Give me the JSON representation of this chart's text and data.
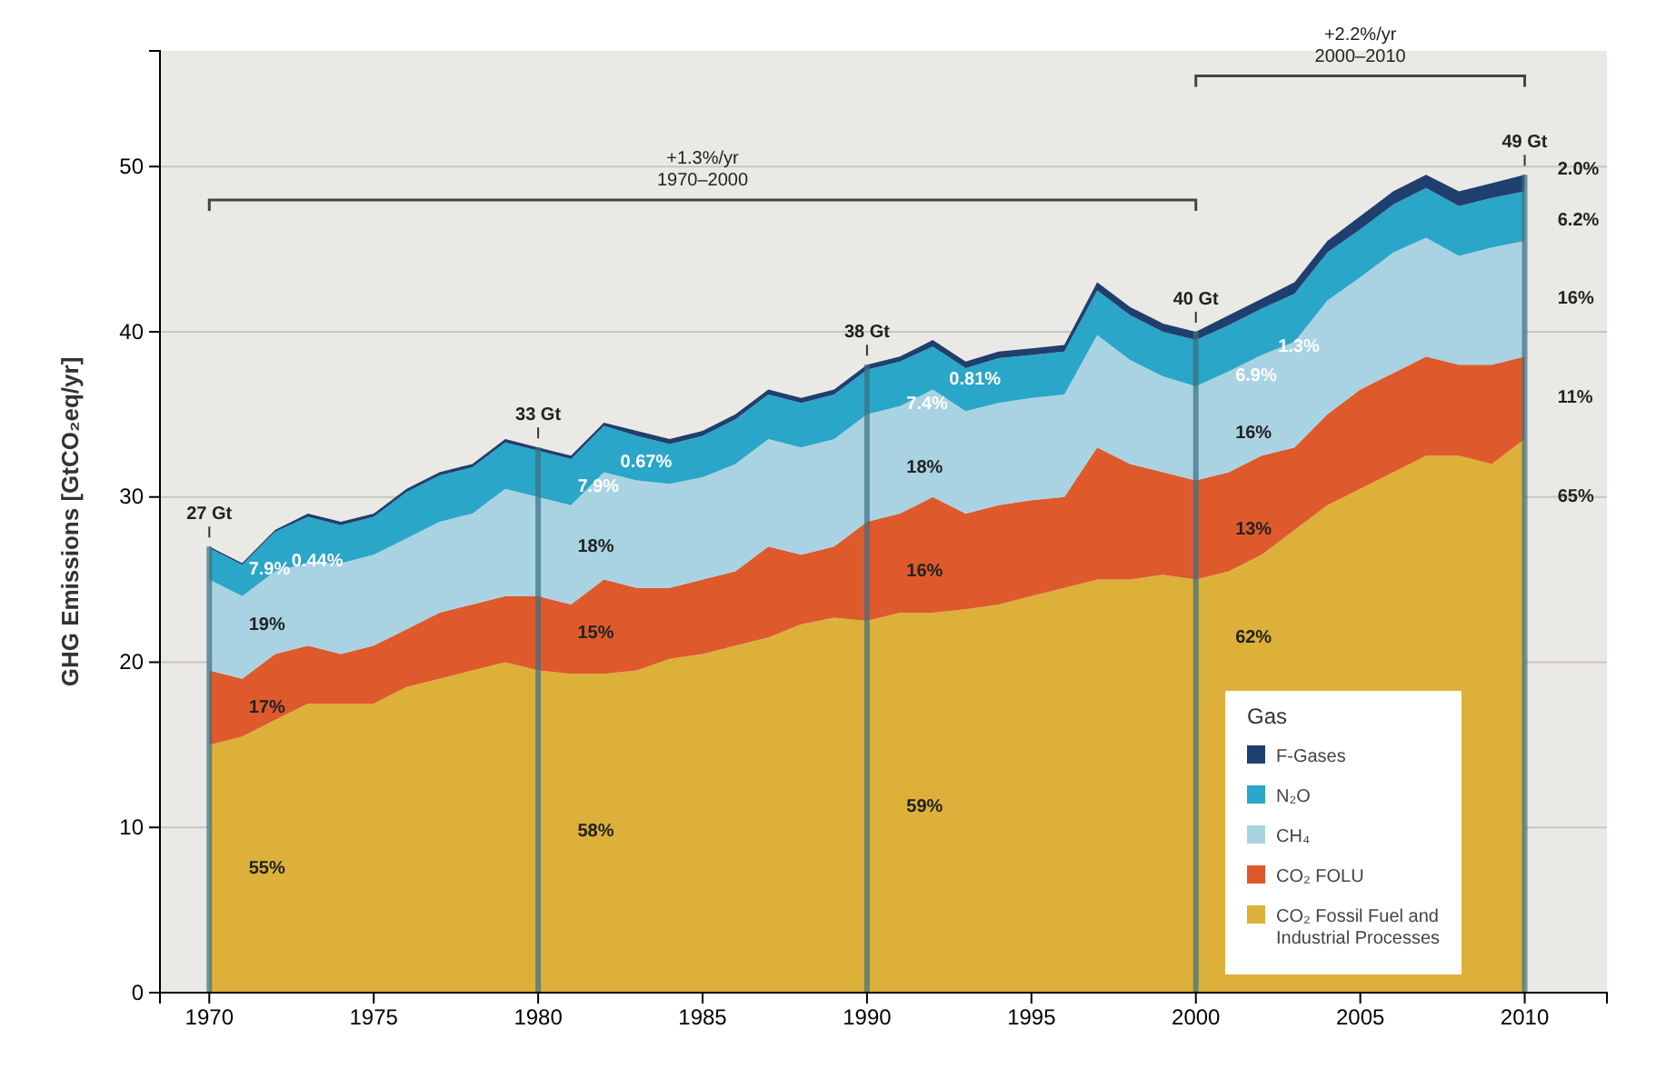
{
  "chart_data": {
    "type": "area",
    "stacked": true,
    "ylabel": "GHG Emissions [GtCO₂eq/yr]",
    "legend_title": "Gas",
    "legend": "bottom right",
    "grid": "y",
    "x": [
      1970,
      1971,
      1972,
      1973,
      1974,
      1975,
      1976,
      1977,
      1978,
      1979,
      1980,
      1981,
      1982,
      1983,
      1984,
      1985,
      1986,
      1987,
      1988,
      1989,
      1990,
      1991,
      1992,
      1993,
      1994,
      1995,
      1996,
      1997,
      1998,
      1999,
      2000,
      2001,
      2002,
      2003,
      2004,
      2005,
      2006,
      2007,
      2008,
      2009,
      2010
    ],
    "xlim": [
      1968.5,
      2012.5
    ],
    "xticks": [
      1970,
      1975,
      1980,
      1985,
      1990,
      1995,
      2000,
      2005,
      2010
    ],
    "ylim": [
      0,
      57
    ],
    "yticks": [
      0,
      10,
      20,
      30,
      40,
      50
    ],
    "series": [
      {
        "name": "CO₂ Fossil Fuel and Industrial Processes",
        "color": "#ddb03a",
        "values": [
          15,
          15.5,
          16.5,
          17.5,
          17.5,
          17.5,
          18.5,
          19,
          19.5,
          20,
          19.5,
          19.3,
          19.3,
          19.5,
          20.2,
          20.5,
          21,
          21.5,
          22.3,
          22.7,
          22.5,
          23,
          23,
          23.2,
          23.5,
          24,
          24.5,
          25,
          25,
          25.3,
          25,
          25.5,
          26.5,
          28,
          29.5,
          30.5,
          31.5,
          32.5,
          32.5,
          32,
          33.5
        ]
      },
      {
        "name": "CO₂ FOLU",
        "color": "#de5a2c",
        "values": [
          4.5,
          3.5,
          4,
          3.5,
          3,
          3.5,
          3.5,
          4,
          4,
          4,
          4.5,
          4.2,
          5.7,
          5,
          4.3,
          4.5,
          4.5,
          5.5,
          4.2,
          4.3,
          6,
          6,
          7,
          5.8,
          6,
          5.8,
          5.5,
          8,
          7,
          6.2,
          6,
          6,
          6,
          5,
          5.5,
          6,
          6,
          6,
          5.5,
          6,
          5
        ]
      },
      {
        "name": "CH₄",
        "color": "#a9d3e3",
        "values": [
          5.5,
          5,
          5,
          5,
          5.5,
          5.5,
          5.5,
          5.5,
          5.5,
          6.5,
          6,
          6,
          6.5,
          6.5,
          6.3,
          6.2,
          6.5,
          6.5,
          6.5,
          6.5,
          6.5,
          6.5,
          6.5,
          6.2,
          6.2,
          6.2,
          6.2,
          6.8,
          6.3,
          5.8,
          5.7,
          6.1,
          6.1,
          6.4,
          6.9,
          6.8,
          7.3,
          7.2,
          6.6,
          7.1,
          7
        ]
      },
      {
        "name": "N₂O",
        "color": "#2aa6c8",
        "values": [
          1.9,
          1.9,
          2.4,
          2.8,
          2.3,
          2.3,
          2.8,
          2.8,
          2.8,
          2.8,
          2.8,
          2.8,
          2.8,
          2.7,
          2.4,
          2.5,
          2.7,
          2.7,
          2.7,
          2.7,
          2.7,
          2.7,
          2.6,
          2.6,
          2.7,
          2.6,
          2.6,
          2.7,
          2.7,
          2.7,
          2.8,
          2.8,
          2.8,
          2.9,
          2.9,
          2.9,
          2.9,
          3,
          3,
          3,
          3
        ]
      },
      {
        "name": "F-Gases",
        "color": "#1f3f6e",
        "values": [
          0.1,
          0.1,
          0.1,
          0.2,
          0.2,
          0.2,
          0.2,
          0.2,
          0.2,
          0.2,
          0.2,
          0.2,
          0.2,
          0.3,
          0.3,
          0.3,
          0.3,
          0.3,
          0.3,
          0.3,
          0.3,
          0.3,
          0.4,
          0.4,
          0.4,
          0.4,
          0.4,
          0.5,
          0.5,
          0.5,
          0.5,
          0.6,
          0.6,
          0.7,
          0.7,
          0.8,
          0.8,
          0.8,
          0.9,
          0.9,
          1.0
        ]
      }
    ],
    "ref_lines": [
      {
        "axis": "x",
        "value": 1970,
        "color": "#3b6f80",
        "label": "27 Gt"
      },
      {
        "axis": "x",
        "value": 1980,
        "color": "#3b6f80",
        "label": "33 Gt"
      },
      {
        "axis": "x",
        "value": 1990,
        "color": "#3b6f80",
        "label": "38 Gt"
      },
      {
        "axis": "x",
        "value": 2000,
        "color": "#3b6f80",
        "label": "40 Gt"
      },
      {
        "axis": "x",
        "value": 2010,
        "color": "#3b6f80",
        "label": "49 Gt"
      }
    ],
    "annotations": [
      "+1.3%/yr\n1970–2000",
      "+2.2%/yr\n2000–2010",
      "0.44%",
      "7.9%",
      "19%",
      "17%",
      "55%",
      "0.67%",
      "7.9%",
      "18%",
      "15%",
      "58%",
      "0.81%",
      "7.4%",
      "18%",
      "16%",
      "59%",
      "1.3%",
      "6.9%",
      "16%",
      "13%",
      "62%",
      "2.0%",
      "6.2%",
      "16%",
      "11%",
      "65%"
    ]
  }
}
